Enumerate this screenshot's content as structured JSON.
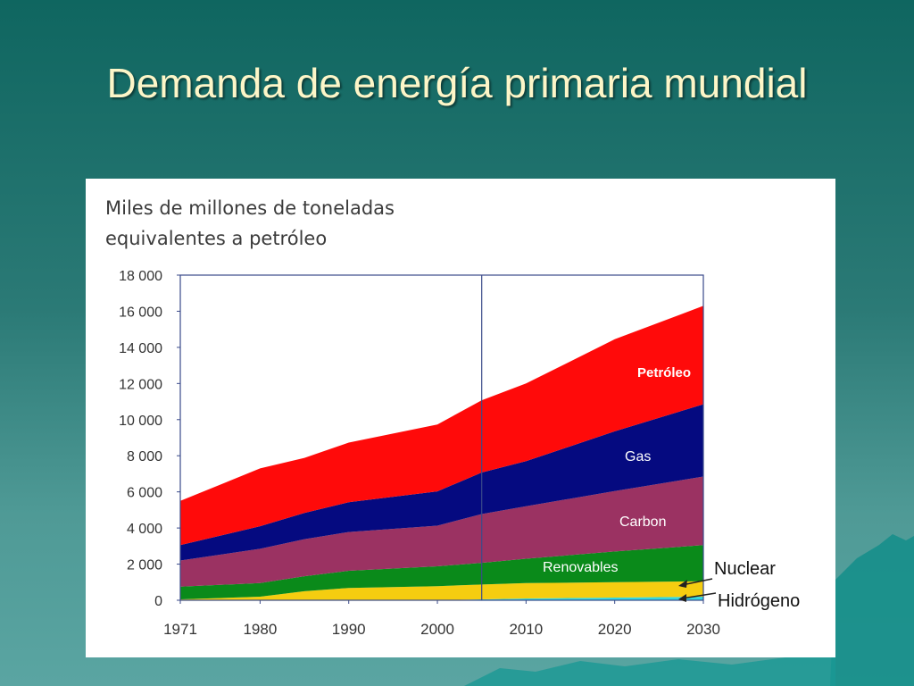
{
  "slide": {
    "title": "Demanda de energía primaria mundial"
  },
  "chart_data": {
    "type": "area",
    "stacked": true,
    "title": "",
    "ylabel": "Miles de millones de toneladas equivalentes a petróleo",
    "ylabel_lines": [
      "Miles de millones de toneladas",
      "equivalentes a petróleo"
    ],
    "xlabel": "",
    "x": [
      1971,
      1980,
      1985,
      1990,
      2000,
      2005,
      2010,
      2020,
      2030
    ],
    "xlim": [
      1971,
      2030
    ],
    "ylim": [
      0,
      18000
    ],
    "x_ticks": [
      "1971",
      "1980",
      "1990",
      "2000",
      "2010",
      "2020",
      "2030"
    ],
    "x_tick_values": [
      1971,
      1980,
      1990,
      2000,
      2010,
      2020,
      2030
    ],
    "y_ticks": [
      "0",
      "2 000",
      "4 000",
      "6 000",
      "8 000",
      "10 000",
      "12 000",
      "14 000",
      "16 000",
      "18 000"
    ],
    "y_tick_values": [
      0,
      2000,
      4000,
      6000,
      8000,
      10000,
      12000,
      14000,
      16000,
      18000
    ],
    "projection_start": 2005,
    "grid": false,
    "series": [
      {
        "name": "Hidrógeno",
        "color": "#33d6e0",
        "values": [
          0,
          0,
          0,
          0,
          0,
          50,
          100,
          150,
          200
        ]
      },
      {
        "name": "Nuclear",
        "color": "#f5cd10",
        "values": [
          50,
          200,
          500,
          680,
          780,
          820,
          850,
          850,
          850
        ]
      },
      {
        "name": "Renovables",
        "color": "#0a8a1a",
        "values": [
          700,
          750,
          830,
          950,
          1100,
          1200,
          1350,
          1700,
          2000
        ]
      },
      {
        "name": "Carbon",
        "color": "#9b3262",
        "values": [
          1450,
          1900,
          2050,
          2150,
          2250,
          2700,
          2900,
          3350,
          3800
        ]
      },
      {
        "name": "Gas",
        "color": "#050a80",
        "values": [
          850,
          1250,
          1450,
          1650,
          1900,
          2300,
          2500,
          3300,
          4000
        ]
      },
      {
        "name": "Petróleo",
        "color": "#ff0a0a",
        "values": [
          2450,
          3200,
          3050,
          3300,
          3700,
          4000,
          4300,
          5100,
          5450
        ]
      }
    ],
    "labels": {
      "petroleo": "Petróleo",
      "gas": "Gas",
      "carbon": "Carbon",
      "renovables": "Renovables",
      "nuclear": "Nuclear",
      "hidrogeno": "Hidrógeno"
    }
  }
}
